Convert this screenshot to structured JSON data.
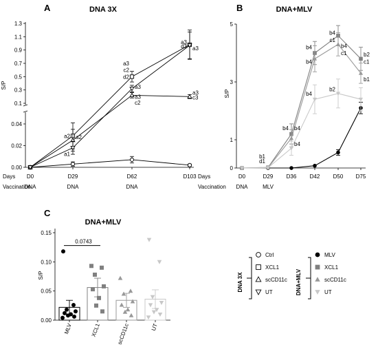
{
  "chart_data": [
    {
      "type": "line",
      "panel": "A",
      "title": "DNA 3X",
      "ylabel": "S/P",
      "xlabel": "Days",
      "x": [
        "D0",
        "D29",
        "D62",
        "D103"
      ],
      "x_days": [
        0,
        29,
        62,
        103
      ],
      "y_ticks_lower": [
        "0.00",
        "0.02",
        "0.04"
      ],
      "y_ticks_upper": [
        "0.1",
        "0.3",
        "0.5",
        "0.7",
        "0.9",
        "1.1",
        "1.3"
      ],
      "axis_break": true,
      "ylim_lower": [
        0,
        0.05
      ],
      "ylim_upper": [
        0.1,
        1.3
      ],
      "vaccination_label": "Vaccination",
      "vaccination": [
        "DNA",
        "DNA",
        "DNA",
        ""
      ],
      "series": [
        {
          "marker": "circle",
          "values": [
            0.0,
            0.003,
            0.007,
            0.002
          ],
          "errors": [
            0,
            0.002,
            0.003,
            0.001
          ]
        },
        {
          "marker": "square",
          "values": [
            0.0,
            0.029,
            0.5,
            0.98
          ],
          "errors": [
            0,
            0.012,
            0.08,
            0.22
          ]
        },
        {
          "marker": "triangle-up",
          "values": [
            0.0,
            0.025,
            0.22,
            0.2
          ],
          "errors": [
            0,
            0.01,
            0.04,
            0.03
          ]
        },
        {
          "marker": "triangle-down",
          "values": [
            0.0,
            0.018,
            0.32,
            0.97
          ],
          "errors": [
            0,
            0.006,
            0.05,
            0.2
          ]
        }
      ],
      "annotations": [
        {
          "text": "a2",
          "x": "D29",
          "y": 0.029
        },
        {
          "text": "a2",
          "x": "D29",
          "y": 0.028,
          "side": "right"
        },
        {
          "text": "a1",
          "x": "D29",
          "y": 0.0125
        },
        {
          "text": "a3",
          "x": "D62",
          "y": 0.7
        },
        {
          "text": "c2",
          "x": "D62",
          "y": 0.6
        },
        {
          "text": "d2",
          "x": "D62",
          "y": 0.5
        },
        {
          "text": "a3",
          "x": "D62",
          "y": 0.35,
          "side": "right"
        },
        {
          "text": "a3",
          "x": "D62",
          "y": 0.2,
          "side": "right"
        },
        {
          "text": "c2",
          "x": "D62",
          "y": 0.11,
          "side": "right"
        },
        {
          "text": "a3",
          "x": "D103",
          "y": 1.02
        },
        {
          "text": "d3",
          "x": "D103",
          "y": 0.96
        },
        {
          "text": "a3",
          "x": "D103",
          "y": 0.93,
          "side": "right"
        },
        {
          "text": "a3",
          "x": "D103",
          "y": 0.26,
          "side": "right"
        },
        {
          "text": "c3",
          "x": "D103",
          "y": 0.19,
          "side": "right"
        }
      ]
    },
    {
      "type": "line",
      "panel": "B",
      "title": "DNA+MLV",
      "ylabel": "S/P",
      "xlabel": "Days",
      "x": [
        "D0",
        "D29",
        "D36",
        "D42",
        "D50",
        "D75"
      ],
      "y_ticks": [
        "0",
        "1",
        "3",
        "5"
      ],
      "ylim": [
        0,
        5
      ],
      "vaccination_label": "Vaccination",
      "vaccination": [
        "DNA",
        "MLV",
        "",
        "",
        "",
        ""
      ],
      "series": [
        {
          "marker": "circle-filled",
          "color": "#000000",
          "values": [
            0,
            0,
            0,
            0.08,
            0.55,
            2.1
          ],
          "errors": [
            0,
            0,
            0,
            0.01,
            0.1,
            0.2
          ]
        },
        {
          "marker": "square-filled",
          "color": "#808080",
          "values": [
            0,
            0.02,
            1.2,
            4.0,
            4.6,
            3.8
          ],
          "errors": [
            0,
            0.01,
            0.35,
            0.4,
            0.35,
            0.4
          ]
        },
        {
          "marker": "triangle-up-filled",
          "color": "#999999",
          "values": [
            0,
            0.01,
            1.05,
            3.8,
            4.3,
            3.3
          ],
          "errors": [
            0,
            0.01,
            0.3,
            0.45,
            0.4,
            0.35
          ]
        },
        {
          "marker": "triangle-down-filled",
          "color": "#c8c8c8",
          "values": [
            0,
            0.01,
            0.7,
            2.4,
            2.6,
            2.4
          ],
          "errors": [
            0,
            0.01,
            0.25,
            0.5,
            0.5,
            0.4
          ]
        }
      ],
      "annotations": [
        {
          "text": "b1",
          "x": "D29",
          "y": 0.42
        },
        {
          "text": "d1",
          "x": "D29",
          "y": 0.25
        },
        {
          "text": "b4",
          "x": "D36",
          "y": 1.4
        },
        {
          "text": "b4",
          "x": "D36",
          "y": 1.4,
          "side": "right"
        },
        {
          "text": "b4",
          "x": "D36",
          "y": 0.85,
          "side": "right"
        },
        {
          "text": "b4",
          "x": "D42",
          "y": 4.2
        },
        {
          "text": "b4",
          "x": "D42",
          "y": 3.7
        },
        {
          "text": "b4",
          "x": "D42",
          "y": 2.6
        },
        {
          "text": "b4",
          "x": "D50",
          "y": 4.7
        },
        {
          "text": "c1",
          "x": "D50",
          "y": 4.45
        },
        {
          "text": "b4",
          "x": "D50",
          "y": 4.25,
          "side": "right"
        },
        {
          "text": "c1",
          "x": "D50",
          "y": 4.0,
          "side": "right"
        },
        {
          "text": "b2",
          "x": "D50",
          "y": 2.75
        },
        {
          "text": "b2",
          "x": "D75",
          "y": 3.95,
          "side": "right"
        },
        {
          "text": "c1",
          "x": "D75",
          "y": 3.7,
          "side": "right"
        },
        {
          "text": "b1",
          "x": "D75",
          "y": 3.1,
          "side": "right"
        }
      ]
    },
    {
      "type": "bar",
      "panel": "C",
      "title": "DNA+MLV",
      "ylabel": "S/P",
      "categories": [
        "MLV",
        "XCL1",
        "scCD11c",
        "UT"
      ],
      "values": [
        0.022,
        0.056,
        0.034,
        0.036
      ],
      "sem": [
        0.012,
        0.016,
        0.012,
        0.016
      ],
      "bar_colors": [
        "#000000",
        "#808080",
        "#999999",
        "#c8c8c8"
      ],
      "y_ticks": [
        "0.00",
        "0.05",
        "0.10",
        "0.15"
      ],
      "ylim": [
        0,
        0.15
      ],
      "significance": {
        "label": "0.0743",
        "from": "MLV",
        "to": "XCL1"
      },
      "points": [
        [
          0.118,
          0.026,
          0.018,
          0.015,
          0.012,
          0.01,
          0.008,
          0.006,
          0.004
        ],
        [
          0.093,
          0.09,
          0.078,
          0.058,
          0.053,
          0.038,
          0.025,
          0.015
        ],
        [
          0.072,
          0.05,
          0.045,
          0.032,
          0.026,
          0.018,
          0.014,
          0.008
        ],
        [
          0.138,
          0.1,
          0.04,
          0.03,
          0.026,
          0.018,
          0.014,
          0.01,
          0.005
        ]
      ]
    }
  ],
  "panel_labels": {
    "a": "A",
    "b": "B",
    "c": "C"
  },
  "legend": {
    "dna3x_label": "DNA 3X",
    "dnamlv_label": "DNA+MLV",
    "dna3x_items": [
      {
        "label": "Ctrl",
        "marker": "circle"
      },
      {
        "label": "XCL1",
        "marker": "square"
      },
      {
        "label": "scCD11c",
        "marker": "triangle-up"
      },
      {
        "label": "UT",
        "marker": "triangle-down"
      }
    ],
    "dnamlv_items": [
      {
        "label": "MLV",
        "marker": "circle-filled",
        "color": "#000000"
      },
      {
        "label": "XCL1",
        "marker": "square-filled",
        "color": "#808080"
      },
      {
        "label": "scCD11c",
        "marker": "triangle-up-filled",
        "color": "#999999"
      },
      {
        "label": "UT",
        "marker": "triangle-down-filled",
        "color": "#c8c8c8"
      }
    ]
  }
}
